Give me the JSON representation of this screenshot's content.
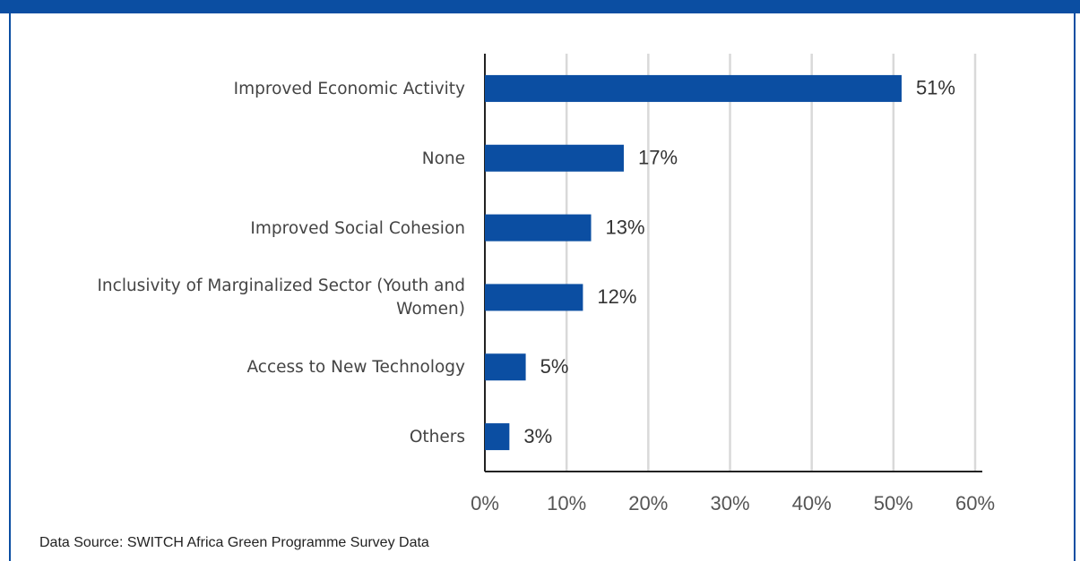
{
  "chart_data": {
    "type": "bar",
    "orientation": "horizontal",
    "categories": [
      "Improved Economic Activity",
      "None",
      "Improved Social Cohesion",
      "Inclusivity of Marginalized Sector (Youth and Women)",
      "Access to New Technology",
      "Others"
    ],
    "values": [
      51,
      17,
      13,
      12,
      5,
      3
    ],
    "value_labels": [
      "51%",
      "17%",
      "13%",
      "12%",
      "5%",
      "3%"
    ],
    "color": "#0b4ea2",
    "xlim": [
      0,
      60
    ],
    "xticks": [
      {
        "value": 0,
        "label": "0%"
      },
      {
        "value": 10,
        "label": "10%"
      },
      {
        "value": 20,
        "label": "20%"
      },
      {
        "value": 30,
        "label": "30%"
      },
      {
        "value": 40,
        "label": "40%"
      },
      {
        "value": 50,
        "label": "50%"
      },
      {
        "value": 60,
        "label": "60%"
      }
    ],
    "grid": true,
    "source": "Data Source: SWITCH Africa Green Programme Survey Data"
  }
}
